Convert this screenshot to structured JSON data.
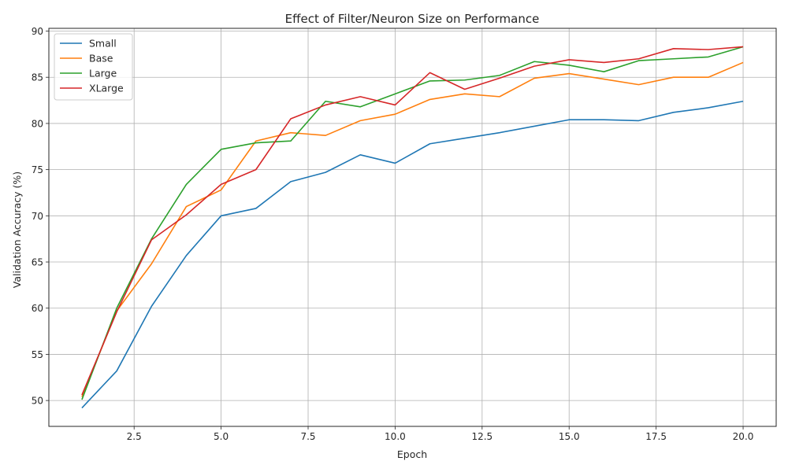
{
  "chart_data": {
    "type": "line",
    "title": "Effect of Filter/Neuron Size on Performance",
    "xlabel": "Epoch",
    "ylabel": "Validation Accuracy (%)",
    "xlim": [
      0.05,
      20.95
    ],
    "ylim": [
      47.2,
      90.3
    ],
    "xticks": [
      2.5,
      5.0,
      7.5,
      10.0,
      12.5,
      15.0,
      17.5,
      20.0
    ],
    "xtick_labels": [
      "2.5",
      "5.0",
      "7.5",
      "10.0",
      "12.5",
      "15.0",
      "17.5",
      "20.0"
    ],
    "yticks": [
      50,
      55,
      60,
      65,
      70,
      75,
      80,
      85,
      90
    ],
    "ytick_labels": [
      "50",
      "55",
      "60",
      "65",
      "70",
      "75",
      "80",
      "85",
      "90"
    ],
    "grid": true,
    "legend_position": "top-left",
    "x": [
      1,
      2,
      3,
      4,
      5,
      6,
      7,
      8,
      9,
      10,
      11,
      12,
      13,
      14,
      15,
      16,
      17,
      18,
      19,
      20
    ],
    "series": [
      {
        "name": "Small",
        "color": "#1f77b4",
        "values": [
          49.2,
          53.2,
          60.2,
          65.7,
          70.0,
          70.8,
          73.7,
          74.7,
          76.6,
          75.7,
          77.8,
          78.4,
          79.0,
          79.7,
          80.4,
          80.4,
          80.3,
          81.2,
          81.7,
          82.4
        ]
      },
      {
        "name": "Base",
        "color": "#ff7f0e",
        "values": [
          50.4,
          59.7,
          64.8,
          71.0,
          72.8,
          78.1,
          79.0,
          78.7,
          80.3,
          81.0,
          82.6,
          83.2,
          82.9,
          84.9,
          85.4,
          84.8,
          84.2,
          85.0,
          85.0,
          86.6
        ]
      },
      {
        "name": "Large",
        "color": "#2ca02c",
        "values": [
          50.1,
          60.0,
          67.5,
          73.4,
          77.2,
          77.9,
          78.1,
          82.4,
          81.8,
          83.2,
          84.6,
          84.7,
          85.2,
          86.7,
          86.3,
          85.6,
          86.8,
          87.0,
          87.2,
          88.3
        ]
      },
      {
        "name": "XLarge",
        "color": "#d62728",
        "values": [
          50.6,
          59.6,
          67.4,
          70.1,
          73.4,
          75.0,
          80.5,
          82.0,
          82.9,
          82.0,
          85.5,
          83.7,
          84.9,
          86.2,
          86.9,
          86.6,
          87.0,
          88.1,
          88.0,
          88.3
        ]
      }
    ]
  }
}
